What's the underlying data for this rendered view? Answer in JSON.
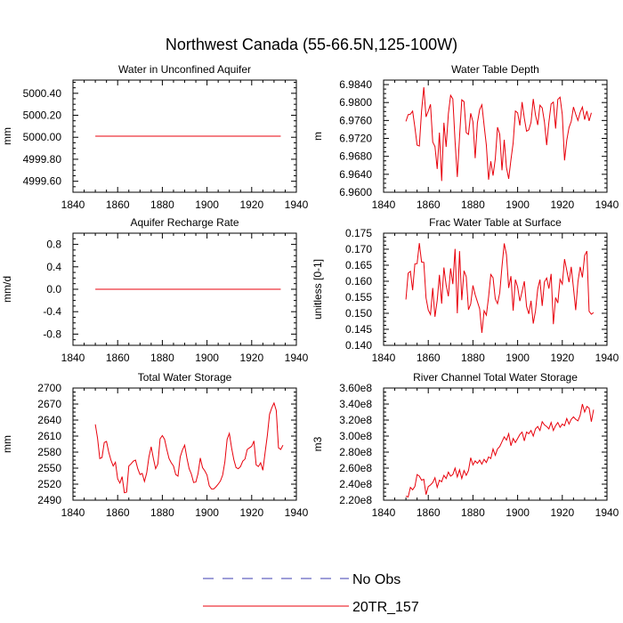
{
  "figure_title": "Northwest Canada (55-66.5N,125-100W)",
  "legend": [
    {
      "label": "No Obs",
      "style": "dashed",
      "color": "#3b3bb0"
    },
    {
      "label": "20TR_157",
      "style": "solid",
      "color": "#e8000b"
    }
  ],
  "chart_data": [
    {
      "type": "line",
      "title": "Water in Unconfined Aquifer",
      "ylabel": "mm",
      "xlim": [
        1840,
        1940
      ],
      "xticks": [
        1840,
        1860,
        1880,
        1900,
        1920,
        1940
      ],
      "xticklabels": [
        "1840",
        "1860",
        "1880",
        "1900",
        "1920",
        "1940"
      ],
      "ylim": [
        4999.5,
        5000.52
      ],
      "yticks": [
        4999.6,
        4999.8,
        5000.0,
        5000.2,
        5000.4
      ],
      "yticklabels": [
        "4999.60",
        "4999.80",
        "5000.00",
        "5000.20",
        "5000.40"
      ],
      "series": [
        {
          "name": "20TR_157",
          "x_start": 1850,
          "x_step": 1,
          "values": [
            5000.01,
            5000.01,
            5000.01,
            5000.01,
            5000.01,
            5000.01,
            5000.01,
            5000.01,
            5000.01,
            5000.01,
            5000.01,
            5000.01,
            5000.01,
            5000.01,
            5000.01,
            5000.01,
            5000.01,
            5000.01,
            5000.01,
            5000.01,
            5000.01,
            5000.01,
            5000.01,
            5000.01,
            5000.01,
            5000.01,
            5000.01,
            5000.01,
            5000.01,
            5000.01,
            5000.01,
            5000.01,
            5000.01,
            5000.01,
            5000.01,
            5000.01,
            5000.01,
            5000.01,
            5000.01,
            5000.01,
            5000.01,
            5000.01,
            5000.01,
            5000.01,
            5000.01,
            5000.01,
            5000.01,
            5000.01,
            5000.01,
            5000.01,
            5000.01,
            5000.01,
            5000.01,
            5000.01,
            5000.01,
            5000.01,
            5000.01,
            5000.01,
            5000.01,
            5000.01,
            5000.01,
            5000.01,
            5000.01,
            5000.01,
            5000.01,
            5000.01,
            5000.01,
            5000.01,
            5000.01,
            5000.01,
            5000.01,
            5000.01,
            5000.01,
            5000.01,
            5000.01,
            5000.01,
            5000.01,
            5000.01,
            5000.01,
            5000.01,
            5000.01,
            5000.01,
            5000.01,
            5000.01
          ]
        }
      ]
    },
    {
      "type": "line",
      "title": "Water Table Depth",
      "ylabel": "m",
      "xlim": [
        1840,
        1940
      ],
      "xticks": [
        1840,
        1860,
        1880,
        1900,
        1920,
        1940
      ],
      "xticklabels": [
        "1840",
        "1860",
        "1880",
        "1900",
        "1920",
        "1940"
      ],
      "ylim": [
        6.96,
        6.985
      ],
      "yticks": [
        6.96,
        6.964,
        6.968,
        6.972,
        6.976,
        6.98,
        6.984
      ],
      "yticklabels": [
        "6.9600",
        "6.9640",
        "6.9680",
        "6.9720",
        "6.9760",
        "6.9800",
        "6.9840"
      ],
      "series": [
        {
          "name": "20TR_157",
          "x_start": 1850,
          "x_step": 1,
          "values": [
            6.9758,
            6.9773,
            6.9774,
            6.9781,
            6.9745,
            6.9705,
            6.9703,
            6.9781,
            6.9834,
            6.9768,
            6.9781,
            6.9796,
            6.9712,
            6.9702,
            6.9652,
            6.9733,
            6.9625,
            6.9755,
            6.9701,
            6.9775,
            6.9816,
            6.9808,
            6.9713,
            6.9634,
            6.9723,
            6.9806,
            6.9802,
            6.9733,
            6.9729,
            6.9776,
            6.9757,
            6.9676,
            6.9755,
            6.9784,
            6.9795,
            6.9749,
            6.9705,
            6.9628,
            6.9669,
            6.9637,
            6.9674,
            6.9745,
            6.9729,
            6.9649,
            6.9717,
            6.9655,
            6.963,
            6.9672,
            6.971,
            6.9781,
            6.9777,
            6.9749,
            6.9801,
            6.9765,
            6.9736,
            6.9739,
            6.9756,
            6.9808,
            6.9772,
            6.975,
            6.9794,
            6.9788,
            6.9757,
            6.9705,
            6.9756,
            6.9797,
            6.9801,
            6.9742,
            6.9807,
            6.9812,
            6.9773,
            6.9671,
            6.9716,
            6.9744,
            6.9758,
            6.979,
            6.9774,
            6.976,
            6.9778,
            6.979,
            6.9762,
            6.9781,
            6.9759,
            6.9777
          ]
        }
      ]
    },
    {
      "type": "line",
      "title": "Aquifer Recharge Rate",
      "ylabel": "mm/d",
      "xlim": [
        1840,
        1940
      ],
      "xticks": [
        1840,
        1860,
        1880,
        1900,
        1920,
        1940
      ],
      "xticklabels": [
        "1840",
        "1860",
        "1880",
        "1900",
        "1920",
        "1940"
      ],
      "ylim": [
        -1.0,
        1.0
      ],
      "yticks": [
        -0.8,
        -0.4,
        0.0,
        0.4,
        0.8
      ],
      "yticklabels": [
        "-0.8",
        "-0.4",
        "0.0",
        "0.4",
        "0.8"
      ],
      "series": [
        {
          "name": "20TR_157",
          "x_start": 1850,
          "x_step": 1,
          "values": [
            0,
            0,
            0,
            0,
            0,
            0,
            0,
            0,
            0,
            0,
            0,
            0,
            0,
            0,
            0,
            0,
            0,
            0,
            0,
            0,
            0,
            0,
            0,
            0,
            0,
            0,
            0,
            0,
            0,
            0,
            0,
            0,
            0,
            0,
            0,
            0,
            0,
            0,
            0,
            0,
            0,
            0,
            0,
            0,
            0,
            0,
            0,
            0,
            0,
            0,
            0,
            0,
            0,
            0,
            0,
            0,
            0,
            0,
            0,
            0,
            0,
            0,
            0,
            0,
            0,
            0,
            0,
            0,
            0,
            0,
            0,
            0,
            0,
            0,
            0,
            0,
            0,
            0,
            0,
            0,
            0,
            0,
            0,
            0
          ]
        }
      ]
    },
    {
      "type": "line",
      "title": "Frac Water Table at Surface",
      "ylabel": "unitless [0-1]",
      "xlim": [
        1840,
        1940
      ],
      "xticks": [
        1840,
        1860,
        1880,
        1900,
        1920,
        1940
      ],
      "xticklabels": [
        "1840",
        "1860",
        "1880",
        "1900",
        "1920",
        "1940"
      ],
      "ylim": [
        0.14,
        0.175
      ],
      "yticks": [
        0.14,
        0.145,
        0.15,
        0.155,
        0.16,
        0.165,
        0.17,
        0.175
      ],
      "yticklabels": [
        "0.140",
        "0.145",
        "0.150",
        "0.155",
        "0.160",
        "0.165",
        "0.170",
        "0.175"
      ],
      "series": [
        {
          "name": "20TR_157",
          "x_start": 1850,
          "x_step": 1,
          "values": [
            0.1543,
            0.1625,
            0.1631,
            0.1572,
            0.1654,
            0.1655,
            0.1719,
            0.166,
            0.1659,
            0.1548,
            0.151,
            0.1496,
            0.1579,
            0.1489,
            0.154,
            0.162,
            0.153,
            0.1643,
            0.1588,
            0.1553,
            0.164,
            0.1591,
            0.1701,
            0.15,
            0.1694,
            0.1541,
            0.1633,
            0.1614,
            0.1511,
            0.1529,
            0.1587,
            0.1558,
            0.1536,
            0.1514,
            0.1439,
            0.1508,
            0.1494,
            0.1551,
            0.1621,
            0.1611,
            0.1545,
            0.153,
            0.1564,
            0.1646,
            0.1718,
            0.1683,
            0.1579,
            0.1616,
            0.1508,
            0.1605,
            0.1582,
            0.1538,
            0.1568,
            0.16,
            0.1521,
            0.1498,
            0.1539,
            0.1468,
            0.1507,
            0.1576,
            0.1605,
            0.1523,
            0.1598,
            0.161,
            0.1577,
            0.1623,
            0.1466,
            0.1549,
            0.1532,
            0.1606,
            0.1591,
            0.1669,
            0.1634,
            0.1597,
            0.1645,
            0.1579,
            0.151,
            0.1598,
            0.1645,
            0.1612,
            0.168,
            0.1694,
            0.1506,
            0.1497,
            0.1502
          ]
        }
      ]
    },
    {
      "type": "line",
      "title": "Total Water Storage",
      "ylabel": "mm",
      "xlim": [
        1840,
        1940
      ],
      "xticks": [
        1840,
        1860,
        1880,
        1900,
        1920,
        1940
      ],
      "xticklabels": [
        "1840",
        "1860",
        "1880",
        "1900",
        "1920",
        "1940"
      ],
      "ylim": [
        2490,
        2700
      ],
      "yticks": [
        2490,
        2520,
        2550,
        2580,
        2610,
        2640,
        2670,
        2700
      ],
      "yticklabels": [
        "2490",
        "2520",
        "2550",
        "2580",
        "2610",
        "2640",
        "2670",
        "2700"
      ],
      "series": [
        {
          "name": "20TR_157",
          "x_start": 1850,
          "x_step": 1,
          "values": [
            2632,
            2606,
            2568,
            2570,
            2598,
            2600,
            2580,
            2565,
            2554,
            2561,
            2530,
            2522,
            2534,
            2504,
            2505,
            2554,
            2558,
            2563,
            2565,
            2549,
            2538,
            2540,
            2525,
            2541,
            2571,
            2590,
            2568,
            2549,
            2558,
            2605,
            2611,
            2604,
            2585,
            2568,
            2560,
            2554,
            2538,
            2535,
            2571,
            2584,
            2593,
            2569,
            2549,
            2539,
            2523,
            2524,
            2540,
            2569,
            2551,
            2545,
            2537,
            2517,
            2511,
            2511,
            2515,
            2520,
            2526,
            2537,
            2562,
            2604,
            2615,
            2588,
            2566,
            2551,
            2549,
            2553,
            2563,
            2567,
            2585,
            2588,
            2591,
            2601,
            2556,
            2553,
            2560,
            2546,
            2579,
            2611,
            2651,
            2663,
            2672,
            2658,
            2588,
            2585,
            2593
          ]
        }
      ]
    },
    {
      "type": "line",
      "title": "River Channel Total Water Storage",
      "ylabel": "m3",
      "xlim": [
        1840,
        1940
      ],
      "xticks": [
        1840,
        1860,
        1880,
        1900,
        1920,
        1940
      ],
      "xticklabels": [
        "1840",
        "1860",
        "1880",
        "1900",
        "1920",
        "1940"
      ],
      "ylim": [
        220000000.0,
        360000000.0
      ],
      "yticks": [
        220000000.0,
        240000000.0,
        260000000.0,
        280000000.0,
        300000000.0,
        320000000.0,
        340000000.0,
        360000000.0
      ],
      "yticklabels": [
        "2.20e8",
        "2.40e8",
        "2.60e8",
        "2.80e8",
        "3.00e8",
        "3.20e8",
        "3.40e8",
        "3.60e8"
      ],
      "series": [
        {
          "name": "20TR_157",
          "x_start": 1850,
          "x_step": 1,
          "values": [
            225000000.0,
            224000000.0,
            236000000.0,
            233000000.0,
            237000000.0,
            252000000.0,
            250000000.0,
            245000000.0,
            246000000.0,
            227000000.0,
            237000000.0,
            239000000.0,
            242000000.0,
            248000000.0,
            236000000.0,
            245000000.0,
            243000000.0,
            251000000.0,
            247000000.0,
            255000000.0,
            250000000.0,
            252000000.0,
            260000000.0,
            249000000.0,
            258000000.0,
            247000000.0,
            257000000.0,
            251000000.0,
            257000000.0,
            273000000.0,
            264000000.0,
            269000000.0,
            266000000.0,
            270000000.0,
            265000000.0,
            271000000.0,
            267000000.0,
            274000000.0,
            272000000.0,
            284000000.0,
            276000000.0,
            284000000.0,
            287000000.0,
            293000000.0,
            299000000.0,
            295000000.0,
            303000000.0,
            288000000.0,
            297000000.0,
            292000000.0,
            297000000.0,
            302000000.0,
            305000000.0,
            294000000.0,
            305000000.0,
            303000000.0,
            307000000.0,
            300000000.0,
            309000000.0,
            312000000.0,
            307000000.0,
            318000000.0,
            314000000.0,
            312000000.0,
            309000000.0,
            317000000.0,
            307000000.0,
            313000000.0,
            317000000.0,
            311000000.0,
            315000000.0,
            313000000.0,
            322000000.0,
            315000000.0,
            321000000.0,
            324000000.0,
            321000000.0,
            319000000.0,
            326000000.0,
            340000000.0,
            330000000.0,
            337000000.0,
            335000000.0,
            318000000.0,
            333000000.0
          ]
        }
      ]
    }
  ]
}
